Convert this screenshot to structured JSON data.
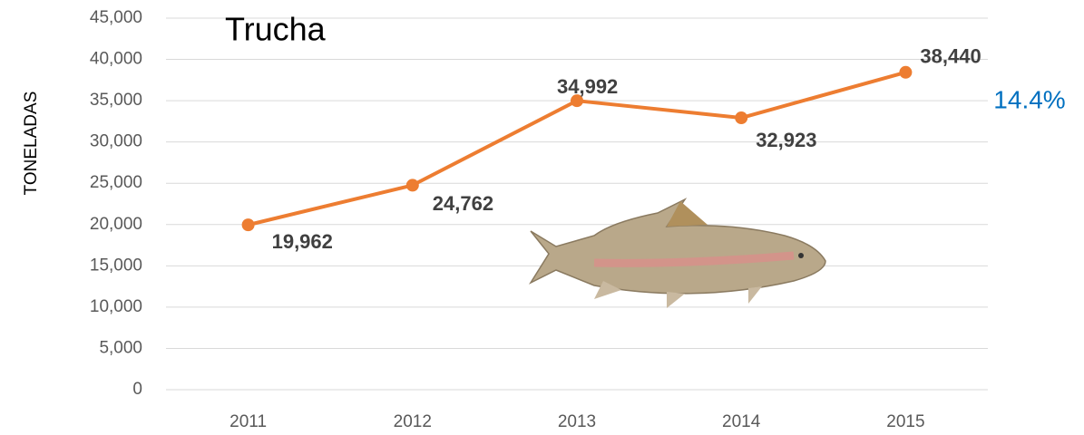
{
  "chart_data": {
    "type": "line",
    "title": "Trucha",
    "y_label": "TONELADAS",
    "categories": [
      "2011",
      "2012",
      "2013",
      "2014",
      "2015"
    ],
    "values": [
      19962,
      24762,
      34992,
      32923,
      38440
    ],
    "value_labels": [
      "19,962",
      "24,762",
      "34,992",
      "32,923",
      "38,440"
    ],
    "color": "#ed7d31",
    "ylim": [
      0,
      45000
    ],
    "yticks": [
      0,
      {
        "value": 5000,
        "label": "5,000"
      },
      {
        "value": 10000,
        "label": "10,000"
      },
      {
        "value": 15000,
        "label": "15,000"
      },
      {
        "value": 20000,
        "label": "20,000"
      },
      {
        "value": 25000,
        "label": "25,000"
      },
      {
        "value": 30000,
        "label": "30,000"
      },
      {
        "value": 35000,
        "label": "35,000"
      },
      {
        "value": 40000,
        "label": "40,000"
      },
      {
        "value": 45000,
        "label": "45,000"
      }
    ],
    "grid": true,
    "annotation": "14.4%",
    "annotation_color": "#0070c0"
  }
}
